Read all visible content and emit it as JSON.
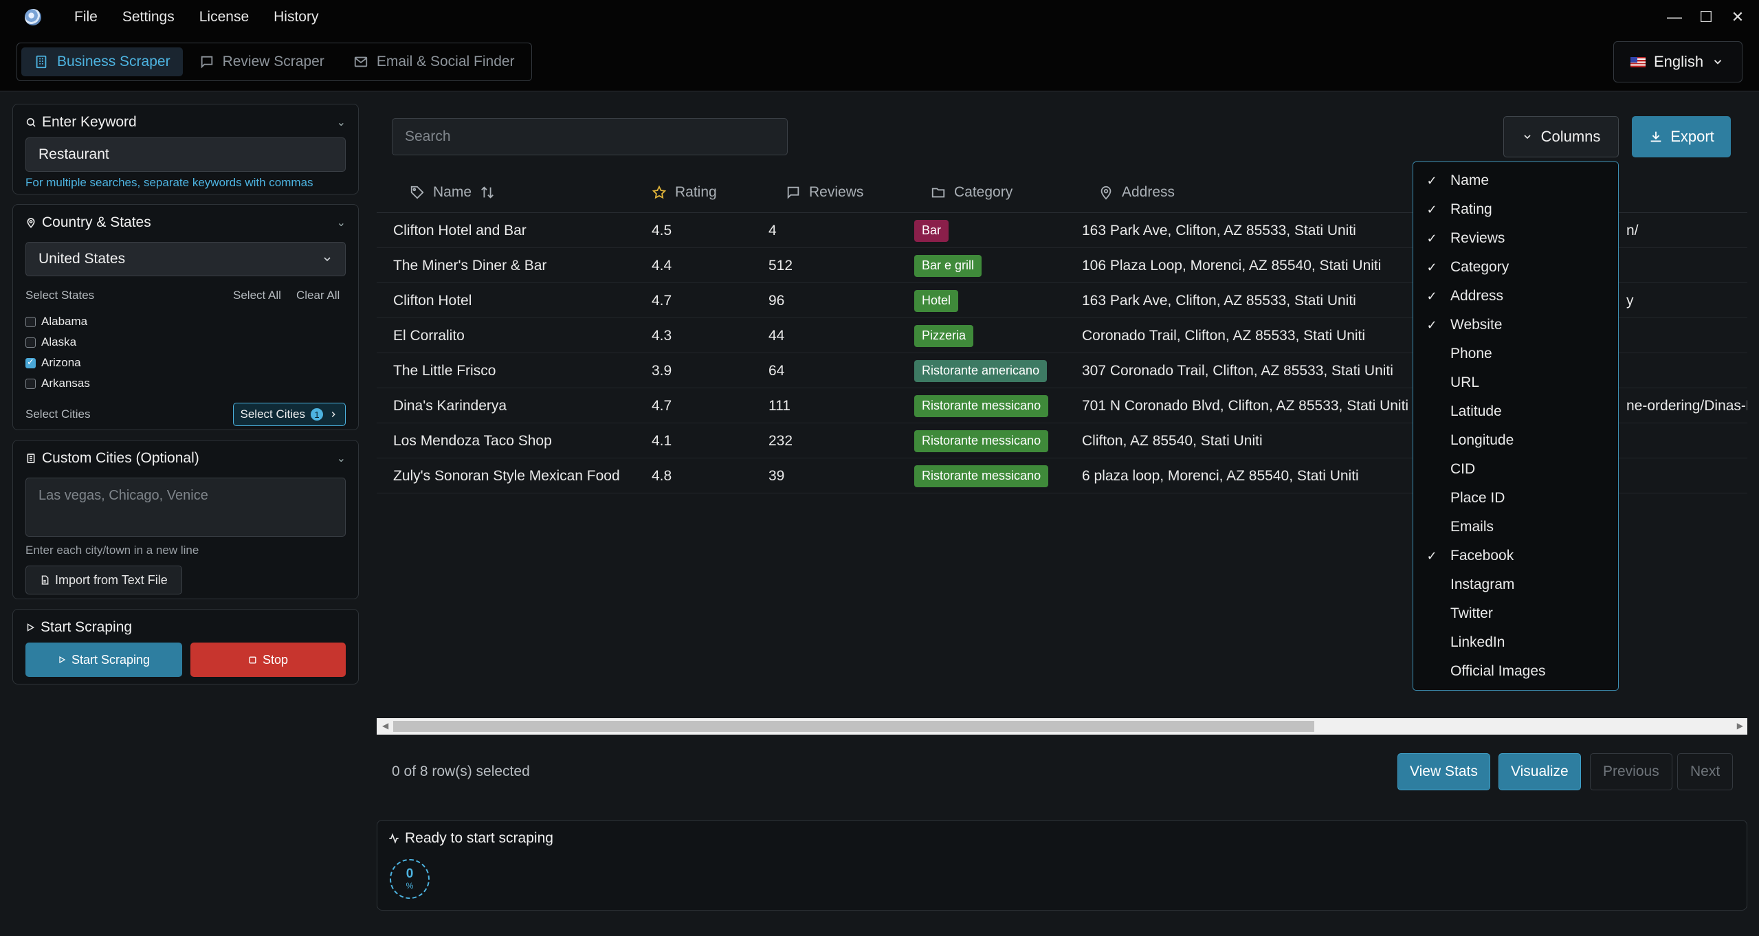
{
  "menu": {
    "items": [
      "File",
      "Settings",
      "License",
      "History"
    ]
  },
  "window": {
    "minimize": "—",
    "maximize": "☐",
    "close": "✕"
  },
  "tabs": [
    {
      "label": "Business Scraper",
      "icon": "building-icon",
      "active": true
    },
    {
      "label": "Review Scraper",
      "icon": "message-icon",
      "active": false
    },
    {
      "label": "Email & Social Finder",
      "icon": "mail-icon",
      "active": false
    }
  ],
  "language": {
    "label": "English"
  },
  "keyword": {
    "title": "Enter Keyword",
    "value": "Restaurant",
    "hint": "For multiple searches, separate keywords with commas"
  },
  "country": {
    "title": "Country & States",
    "selected": "United States",
    "select_states_label": "Select States",
    "select_all": "Select All",
    "clear_all": "Clear All",
    "states": [
      {
        "name": "Alabama",
        "checked": false
      },
      {
        "name": "Alaska",
        "checked": false
      },
      {
        "name": "Arizona",
        "checked": true
      },
      {
        "name": "Arkansas",
        "checked": false
      }
    ],
    "select_cities_label": "Select Cities",
    "select_cities_button": "Select Cities",
    "cities_count": "1"
  },
  "custom_cities": {
    "title": "Custom Cities (Optional)",
    "placeholder": "Las vegas, Chicago, Venice",
    "hint": "Enter each city/town in a new line",
    "import_label": "Import from Text File"
  },
  "scraping": {
    "title": "Start Scraping",
    "start_label": "Start Scraping",
    "stop_label": "Stop"
  },
  "search": {
    "placeholder": "Search"
  },
  "toolbar": {
    "columns_label": "Columns",
    "export_label": "Export"
  },
  "table": {
    "headers": {
      "name": "Name",
      "rating": "Rating",
      "reviews": "Reviews",
      "category": "Category",
      "address": "Address"
    },
    "rows": [
      {
        "name": "Clifton Hotel and Bar",
        "rating": "4.5",
        "reviews": "4",
        "category": "Bar",
        "address": "163 Park Ave, Clifton, AZ 85533, Stati Uniti",
        "extra": "n/"
      },
      {
        "name": "The Miner's Diner & Bar",
        "rating": "4.4",
        "reviews": "512",
        "category": "Bar e grill",
        "address": "106 Plaza Loop, Morenci, AZ 85540, Stati Uniti",
        "extra": ""
      },
      {
        "name": "Clifton Hotel",
        "rating": "4.7",
        "reviews": "96",
        "category": "Hotel",
        "address": "163 Park Ave, Clifton, AZ 85533, Stati Uniti",
        "extra": "y"
      },
      {
        "name": "El Corralito",
        "rating": "4.3",
        "reviews": "44",
        "category": "Pizzeria",
        "address": "Coronado Trail, Clifton, AZ 85533, Stati Uniti",
        "extra": ""
      },
      {
        "name": "The Little Frisco",
        "rating": "3.9",
        "reviews": "64",
        "category": "Ristorante americano",
        "address": "307 Coronado Trail, Clifton, AZ 85533, Stati Uniti",
        "extra": ""
      },
      {
        "name": "Dina's Karinderya",
        "rating": "4.7",
        "reviews": "111",
        "category": "Ristorante messicano",
        "address": "701 N Coronado Blvd, Clifton, AZ 85533, Stati Uniti",
        "extra": "ne-ordering/Dinas-Ka"
      },
      {
        "name": "Los Mendoza Taco Shop",
        "rating": "4.1",
        "reviews": "232",
        "category": "Ristorante messicano",
        "address": "Clifton, AZ 85540, Stati Uniti",
        "extra": ""
      },
      {
        "name": "Zuly's Sonoran Style Mexican Food",
        "rating": "4.8",
        "reviews": "39",
        "category": "Ristorante messicano",
        "address": "6 plaza loop, Morenci, AZ 85540, Stati Uniti",
        "extra": ""
      }
    ]
  },
  "category_colors": {
    "Bar": "#8a1f4a",
    "Bar e grill": "#3f8a3a",
    "Hotel": "#3f8a3a",
    "Pizzeria": "#3f8a3a",
    "Ristorante americano": "#3d7a63",
    "Ristorante messicano": "#3f8a3a"
  },
  "footer": {
    "selection": "0 of 8 row(s) selected",
    "view_stats": "View Stats",
    "visualize": "Visualize",
    "previous": "Previous",
    "next": "Next"
  },
  "status": {
    "title": "Ready to start scraping",
    "progress": "0",
    "unit": "%"
  },
  "columns_menu": [
    {
      "label": "Name",
      "checked": true
    },
    {
      "label": "Rating",
      "checked": true
    },
    {
      "label": "Reviews",
      "checked": true
    },
    {
      "label": "Category",
      "checked": true
    },
    {
      "label": "Address",
      "checked": true
    },
    {
      "label": "Website",
      "checked": true
    },
    {
      "label": "Phone",
      "checked": false
    },
    {
      "label": "URL",
      "checked": false
    },
    {
      "label": "Latitude",
      "checked": false
    },
    {
      "label": "Longitude",
      "checked": false
    },
    {
      "label": "CID",
      "checked": false
    },
    {
      "label": "Place ID",
      "checked": false
    },
    {
      "label": "Emails",
      "checked": false
    },
    {
      "label": "Facebook",
      "checked": true
    },
    {
      "label": "Instagram",
      "checked": false
    },
    {
      "label": "Twitter",
      "checked": false
    },
    {
      "label": "LinkedIn",
      "checked": false
    },
    {
      "label": "Official Images",
      "checked": false
    }
  ]
}
